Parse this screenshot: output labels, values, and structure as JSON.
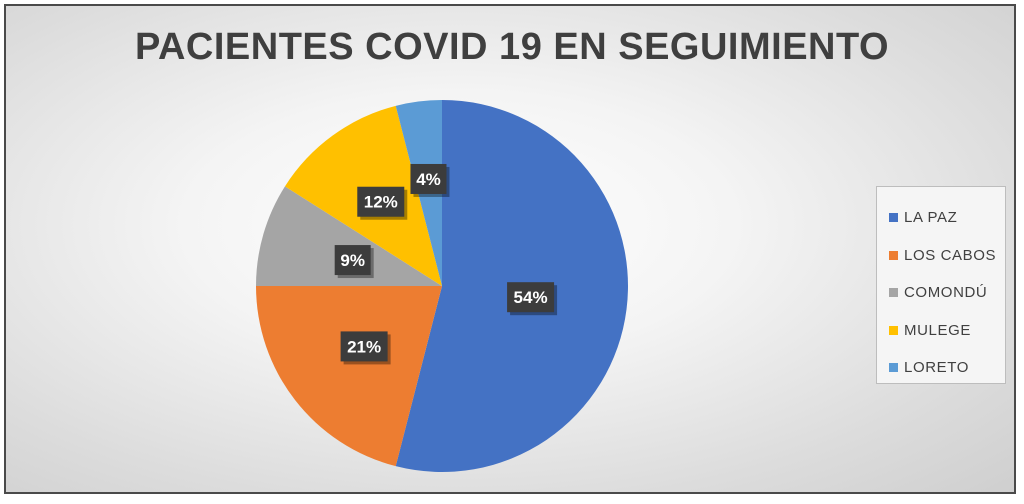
{
  "chart_data": {
    "type": "pie",
    "title": "PACIENTES COVID 19 EN SEGUIMIENTO",
    "series": [
      {
        "labels": [
          "LA PAZ",
          "LOS CABOS",
          "COMONDÚ",
          "MULEGE",
          "LORETO"
        ],
        "values": [
          54,
          21,
          9,
          12,
          4
        ],
        "data_labels": [
          "54%",
          "21%",
          "9%",
          "12%",
          "4%"
        ],
        "colors": [
          "#4472C4",
          "#ED7D31",
          "#A5A5A5",
          "#FFC000",
          "#5B9BD5"
        ]
      }
    ],
    "legend": {
      "position": "right",
      "entries": [
        "LA PAZ",
        "LOS CABOS",
        "COMONDÚ",
        "MULEGE",
        "LORETO"
      ]
    },
    "start_angle": "12 o'clock",
    "direction": "clockwise"
  }
}
